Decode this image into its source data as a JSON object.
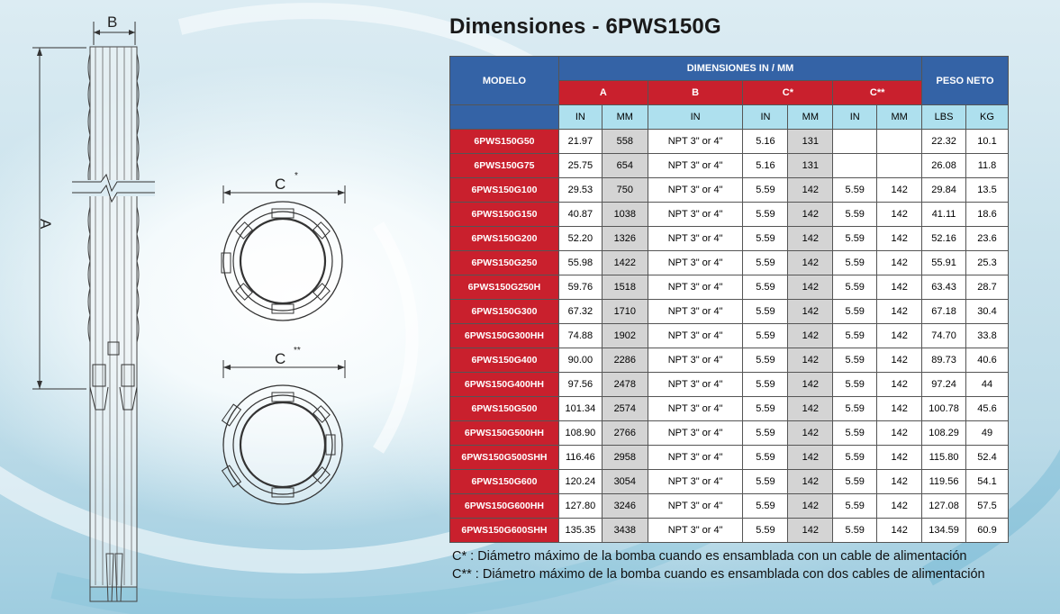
{
  "title": "Dimensiones - 6PWS150G",
  "diagram": {
    "label_a": "A",
    "label_b": "B",
    "label_c1": "C",
    "label_c1_sup": "*",
    "label_c2": "C",
    "label_c2_sup": "**"
  },
  "table": {
    "model_header": "MODELO",
    "dimensions_header": "DIMENSIONES IN / MM",
    "weight_header": "PESO NETO",
    "group_a": "A",
    "group_b": "B",
    "group_c1": "C*",
    "group_c2": "C**",
    "units": [
      "IN",
      "MM",
      "IN",
      "IN",
      "MM",
      "IN",
      "MM",
      "LBS",
      "KG"
    ],
    "rows": [
      {
        "model": "6PWS150G50",
        "a_in": "21.97",
        "a_mm": "558",
        "b_in": "NPT 3\" or 4\"",
        "c1_in": "5.16",
        "c1_mm": "131",
        "c2_in": "",
        "c2_mm": "",
        "lbs": "22.32",
        "kg": "10.1"
      },
      {
        "model": "6PWS150G75",
        "a_in": "25.75",
        "a_mm": "654",
        "b_in": "NPT 3\" or 4\"",
        "c1_in": "5.16",
        "c1_mm": "131",
        "c2_in": "",
        "c2_mm": "",
        "lbs": "26.08",
        "kg": "11.8"
      },
      {
        "model": "6PWS150G100",
        "a_in": "29.53",
        "a_mm": "750",
        "b_in": "NPT 3\" or 4\"",
        "c1_in": "5.59",
        "c1_mm": "142",
        "c2_in": "5.59",
        "c2_mm": "142",
        "lbs": "29.84",
        "kg": "13.5"
      },
      {
        "model": "6PWS150G150",
        "a_in": "40.87",
        "a_mm": "1038",
        "b_in": "NPT 3\" or 4\"",
        "c1_in": "5.59",
        "c1_mm": "142",
        "c2_in": "5.59",
        "c2_mm": "142",
        "lbs": "41.11",
        "kg": "18.6"
      },
      {
        "model": "6PWS150G200",
        "a_in": "52.20",
        "a_mm": "1326",
        "b_in": "NPT 3\" or 4\"",
        "c1_in": "5.59",
        "c1_mm": "142",
        "c2_in": "5.59",
        "c2_mm": "142",
        "lbs": "52.16",
        "kg": "23.6"
      },
      {
        "model": "6PWS150G250",
        "a_in": "55.98",
        "a_mm": "1422",
        "b_in": "NPT 3\" or 4\"",
        "c1_in": "5.59",
        "c1_mm": "142",
        "c2_in": "5.59",
        "c2_mm": "142",
        "lbs": "55.91",
        "kg": "25.3"
      },
      {
        "model": "6PWS150G250H",
        "a_in": "59.76",
        "a_mm": "1518",
        "b_in": "NPT 3\" or 4\"",
        "c1_in": "5.59",
        "c1_mm": "142",
        "c2_in": "5.59",
        "c2_mm": "142",
        "lbs": "63.43",
        "kg": "28.7"
      },
      {
        "model": "6PWS150G300",
        "a_in": "67.32",
        "a_mm": "1710",
        "b_in": "NPT 3\" or 4\"",
        "c1_in": "5.59",
        "c1_mm": "142",
        "c2_in": "5.59",
        "c2_mm": "142",
        "lbs": "67.18",
        "kg": "30.4"
      },
      {
        "model": "6PWS150G300HH",
        "a_in": "74.88",
        "a_mm": "1902",
        "b_in": "NPT 3\" or 4\"",
        "c1_in": "5.59",
        "c1_mm": "142",
        "c2_in": "5.59",
        "c2_mm": "142",
        "lbs": "74.70",
        "kg": "33.8"
      },
      {
        "model": "6PWS150G400",
        "a_in": "90.00",
        "a_mm": "2286",
        "b_in": "NPT 3\" or 4\"",
        "c1_in": "5.59",
        "c1_mm": "142",
        "c2_in": "5.59",
        "c2_mm": "142",
        "lbs": "89.73",
        "kg": "40.6"
      },
      {
        "model": "6PWS150G400HH",
        "a_in": "97.56",
        "a_mm": "2478",
        "b_in": "NPT 3\" or 4\"",
        "c1_in": "5.59",
        "c1_mm": "142",
        "c2_in": "5.59",
        "c2_mm": "142",
        "lbs": "97.24",
        "kg": "44"
      },
      {
        "model": "6PWS150G500",
        "a_in": "101.34",
        "a_mm": "2574",
        "b_in": "NPT 3\" or 4\"",
        "c1_in": "5.59",
        "c1_mm": "142",
        "c2_in": "5.59",
        "c2_mm": "142",
        "lbs": "100.78",
        "kg": "45.6"
      },
      {
        "model": "6PWS150G500HH",
        "a_in": "108.90",
        "a_mm": "2766",
        "b_in": "NPT 3\" or 4\"",
        "c1_in": "5.59",
        "c1_mm": "142",
        "c2_in": "5.59",
        "c2_mm": "142",
        "lbs": "108.29",
        "kg": "49"
      },
      {
        "model": "6PWS150G500SHH",
        "a_in": "116.46",
        "a_mm": "2958",
        "b_in": "NPT 3\" or 4\"",
        "c1_in": "5.59",
        "c1_mm": "142",
        "c2_in": "5.59",
        "c2_mm": "142",
        "lbs": "115.80",
        "kg": "52.4"
      },
      {
        "model": "6PWS150G600",
        "a_in": "120.24",
        "a_mm": "3054",
        "b_in": "NPT 3\" or 4\"",
        "c1_in": "5.59",
        "c1_mm": "142",
        "c2_in": "5.59",
        "c2_mm": "142",
        "lbs": "119.56",
        "kg": "54.1"
      },
      {
        "model": "6PWS150G600HH",
        "a_in": "127.80",
        "a_mm": "3246",
        "b_in": "NPT 3\" or 4\"",
        "c1_in": "5.59",
        "c1_mm": "142",
        "c2_in": "5.59",
        "c2_mm": "142",
        "lbs": "127.08",
        "kg": "57.5"
      },
      {
        "model": "6PWS150G600SHH",
        "a_in": "135.35",
        "a_mm": "3438",
        "b_in": "NPT 3\" or 4\"",
        "c1_in": "5.59",
        "c1_mm": "142",
        "c2_in": "5.59",
        "c2_mm": "142",
        "lbs": "134.59",
        "kg": "60.9"
      }
    ]
  },
  "notes": [
    "C* : Diámetro máximo de la bomba cuando es ensamblada con un cable de alimentación",
    "C** : Diámetro máximo de la bomba cuando es ensamblada con dos cables de alimentación"
  ]
}
